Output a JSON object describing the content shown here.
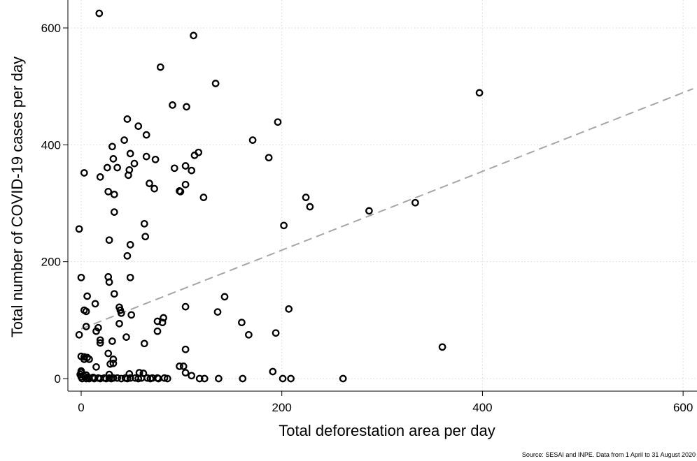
{
  "chart_data": {
    "type": "scatter",
    "xlabel": "Total deforestation area per day",
    "ylabel": "Total number of COVID-19 cases per day",
    "note": "Source: SESAI and INPE. Data from 1 April to 31 August 2020",
    "xlim": [
      0,
      610
    ],
    "ylim": [
      0,
      625
    ],
    "xticks": [
      0,
      200,
      400,
      600
    ],
    "yticks": [
      0,
      200,
      400,
      600
    ],
    "grid": true,
    "marker": "hollow-circle",
    "colors": {
      "points": "#000000",
      "fit_line": "#a6a6a6",
      "grid": "#d9d9d9"
    },
    "fit_line": {
      "style": "dashed",
      "x": [
        0,
        610
      ],
      "y": [
        85,
        496
      ]
    },
    "points": [
      [
        18,
        625
      ],
      [
        112,
        587
      ],
      [
        79,
        533
      ],
      [
        134,
        505
      ],
      [
        397,
        489
      ],
      [
        91,
        468
      ],
      [
        105,
        465
      ],
      [
        46,
        444
      ],
      [
        196,
        439
      ],
      [
        57,
        432
      ],
      [
        65,
        417
      ],
      [
        171,
        408
      ],
      [
        43,
        408
      ],
      [
        31,
        397
      ],
      [
        117,
        387
      ],
      [
        49,
        385
      ],
      [
        113,
        382
      ],
      [
        65,
        380
      ],
      [
        187,
        378
      ],
      [
        74,
        375
      ],
      [
        32,
        376
      ],
      [
        53,
        368
      ],
      [
        104,
        364
      ],
      [
        26,
        361
      ],
      [
        93,
        360
      ],
      [
        36,
        361
      ],
      [
        110,
        356
      ],
      [
        48,
        357
      ],
      [
        3,
        352
      ],
      [
        47,
        348
      ],
      [
        19,
        345
      ],
      [
        68,
        334
      ],
      [
        104,
        332
      ],
      [
        73,
        325
      ],
      [
        98,
        321
      ],
      [
        99,
        320
      ],
      [
        27,
        320
      ],
      [
        33,
        315
      ],
      [
        122,
        310
      ],
      [
        224,
        310
      ],
      [
        333,
        301
      ],
      [
        228,
        294
      ],
      [
        287,
        287
      ],
      [
        33,
        285
      ],
      [
        63,
        265
      ],
      [
        202,
        262
      ],
      [
        -2,
        256
      ],
      [
        64,
        243
      ],
      [
        28,
        237
      ],
      [
        49,
        229
      ],
      [
        46,
        210
      ],
      [
        27,
        174
      ],
      [
        0,
        173
      ],
      [
        49,
        173
      ],
      [
        28,
        165
      ],
      [
        33,
        145
      ],
      [
        143,
        140
      ],
      [
        6,
        141
      ],
      [
        14,
        128
      ],
      [
        104,
        123
      ],
      [
        38,
        122
      ],
      [
        39,
        117
      ],
      [
        207,
        119
      ],
      [
        3,
        117
      ],
      [
        5,
        115
      ],
      [
        136,
        114
      ],
      [
        40,
        112
      ],
      [
        50,
        109
      ],
      [
        82,
        104
      ],
      [
        81,
        96
      ],
      [
        76,
        98
      ],
      [
        160,
        96
      ],
      [
        38,
        94
      ],
      [
        5,
        89
      ],
      [
        17,
        87
      ],
      [
        15,
        81
      ],
      [
        76,
        81
      ],
      [
        194,
        78
      ],
      [
        -2,
        75
      ],
      [
        167,
        75
      ],
      [
        45,
        71
      ],
      [
        19,
        66
      ],
      [
        31,
        64
      ],
      [
        19,
        61
      ],
      [
        63,
        60
      ],
      [
        360,
        54
      ],
      [
        104,
        50
      ],
      [
        27,
        43
      ],
      [
        0,
        38
      ],
      [
        3,
        37
      ],
      [
        6,
        36
      ],
      [
        3,
        33
      ],
      [
        8,
        33
      ],
      [
        32,
        33
      ],
      [
        29,
        25
      ],
      [
        32,
        26
      ],
      [
        98,
        21
      ],
      [
        102,
        21
      ],
      [
        15,
        20
      ],
      [
        191,
        12
      ],
      [
        0,
        13
      ],
      [
        0,
        10
      ],
      [
        104,
        10
      ],
      [
        58,
        10
      ],
      [
        62,
        9
      ],
      [
        48,
        8
      ],
      [
        28,
        7
      ],
      [
        -1,
        7
      ],
      [
        5,
        6
      ],
      [
        110,
        5
      ],
      [
        0,
        3
      ],
      [
        4,
        3
      ],
      [
        7,
        2
      ],
      [
        12,
        2
      ],
      [
        17,
        1
      ],
      [
        23,
        1
      ],
      [
        28,
        1
      ],
      [
        32,
        1
      ],
      [
        36,
        1
      ],
      [
        44,
        1
      ],
      [
        49,
        1
      ],
      [
        54,
        1
      ],
      [
        60,
        1
      ],
      [
        66,
        1
      ],
      [
        71,
        1
      ],
      [
        76,
        1
      ],
      [
        83,
        1
      ],
      [
        1,
        0
      ],
      [
        5,
        0
      ],
      [
        8,
        0
      ],
      [
        13,
        0
      ],
      [
        19,
        0
      ],
      [
        25,
        0
      ],
      [
        30,
        0
      ],
      [
        40,
        0
      ],
      [
        46,
        0
      ],
      [
        57,
        0
      ],
      [
        69,
        0
      ],
      [
        77,
        0
      ],
      [
        86,
        0
      ],
      [
        118,
        0
      ],
      [
        123,
        0
      ],
      [
        137,
        0
      ],
      [
        161,
        0
      ],
      [
        201,
        0
      ],
      [
        209,
        0
      ],
      [
        261,
        0
      ]
    ]
  }
}
